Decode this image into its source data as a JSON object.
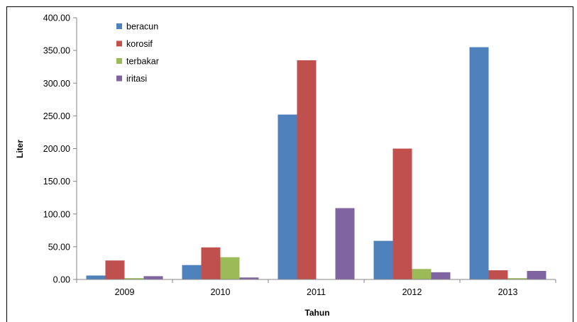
{
  "chart_data": {
    "type": "bar",
    "categories": [
      "2009",
      "2010",
      "2011",
      "2012",
      "2013"
    ],
    "series": [
      {
        "name": "beracun",
        "color": "#4F81BD",
        "values": [
          6,
          22,
          252,
          59,
          355
        ]
      },
      {
        "name": "korosif",
        "color": "#C0504D",
        "values": [
          29,
          49,
          335,
          200,
          14
        ]
      },
      {
        "name": "terbakar",
        "color": "#9BBB59",
        "values": [
          2,
          34,
          0,
          16,
          2
        ]
      },
      {
        "name": "iritasi",
        "color": "#8064A2",
        "values": [
          5,
          3,
          109,
          11,
          13
        ]
      }
    ],
    "title": "",
    "xlabel": "Tahun",
    "ylabel": "Liter",
    "ylim": [
      0,
      400
    ],
    "yticks": [
      "0.00",
      "50.00",
      "100.00",
      "150.00",
      "200.00",
      "250.00",
      "300.00",
      "350.00",
      "400.00"
    ],
    "grid": false,
    "legend_position": "top-left"
  }
}
